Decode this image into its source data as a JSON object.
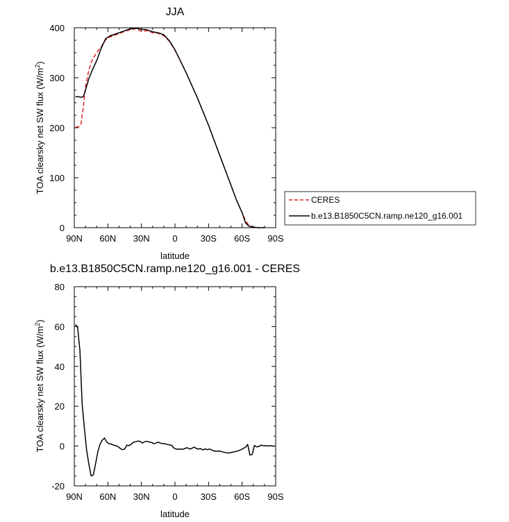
{
  "chart_data": [
    {
      "type": "line",
      "title": "JJA",
      "xlabel": "latitude",
      "ylabel": "TOA clearsky net SW flux (W/m",
      "ylabel_sup": "2",
      "ylabel_end": ")",
      "xlim": [
        90,
        -90
      ],
      "ylim": [
        0,
        400
      ],
      "xticks": [
        90,
        60,
        30,
        0,
        -30,
        -60,
        -90
      ],
      "xtick_labels": [
        "90N",
        "60N",
        "30N",
        "0",
        "30S",
        "60S",
        "90S"
      ],
      "yticks": [
        0,
        100,
        200,
        300,
        400
      ],
      "ytick_labels": [
        "0",
        "100",
        "200",
        "300",
        "400"
      ],
      "grid": false,
      "legend": "outside-right",
      "series": [
        {
          "name": "CERES",
          "color": "#e02020",
          "dash": "dashed",
          "x": [
            89,
            86,
            84,
            82,
            80,
            77,
            74,
            70,
            66,
            62,
            58,
            54,
            50,
            45,
            40,
            35,
            30,
            25,
            20,
            15,
            10,
            5,
            0,
            -10,
            -20,
            -30,
            -40,
            -50,
            -55,
            -60,
            -63,
            -66,
            -70,
            -75,
            -80
          ],
          "y": [
            201,
            202,
            208,
            240,
            282,
            315,
            336,
            350,
            362,
            376,
            382,
            385,
            388,
            393,
            396,
            398,
            393,
            394,
            390,
            389,
            384,
            373,
            355,
            310,
            260,
            205,
            145,
            85,
            55,
            30,
            14,
            5,
            1,
            0,
            0
          ]
        },
        {
          "name": "b.e13.B1850C5CN.ramp.ne120_g16.001",
          "color": "#000000",
          "dash": "solid",
          "x": [
            89,
            86,
            84,
            82,
            80,
            77,
            74,
            70,
            66,
            62,
            58,
            54,
            50,
            45,
            40,
            35,
            30,
            25,
            20,
            15,
            10,
            5,
            0,
            -10,
            -20,
            -30,
            -40,
            -50,
            -55,
            -60,
            -63,
            -66,
            -70,
            -75,
            -80
          ],
          "y": [
            262,
            262,
            261,
            262,
            275,
            298,
            315,
            334,
            359,
            378,
            384,
            387,
            390,
            394,
            398,
            399,
            397,
            396,
            392,
            390,
            386,
            374,
            356,
            310,
            260,
            205,
            145,
            85,
            55,
            30,
            10,
            3,
            1,
            0,
            0
          ]
        }
      ]
    },
    {
      "type": "line",
      "title": "b.e13.B1850C5CN.ramp.ne120_g16.001 - CERES",
      "xlabel": "latitude",
      "ylabel": "TOA clearsky net SW flux (W/m",
      "ylabel_sup": "2",
      "ylabel_end": ")",
      "xlim": [
        90,
        -90
      ],
      "ylim": [
        -20,
        80
      ],
      "xticks": [
        90,
        60,
        30,
        0,
        -30,
        -60,
        -90
      ],
      "xtick_labels": [
        "90N",
        "60N",
        "30N",
        "0",
        "30S",
        "60S",
        "90S"
      ],
      "yticks": [
        -20,
        0,
        20,
        40,
        60,
        80
      ],
      "ytick_labels": [
        "-20",
        "0",
        "20",
        "40",
        "60",
        "80"
      ],
      "grid": false,
      "series": [
        {
          "color": "#000000",
          "dash": "solid",
          "x": [
            89,
            87,
            85,
            83,
            81,
            79,
            77,
            75,
            73,
            71,
            69,
            67,
            65,
            63,
            61,
            59,
            57,
            55,
            53,
            51,
            49,
            47,
            45,
            43,
            41,
            39,
            37,
            35,
            33,
            31,
            29,
            27,
            25,
            23,
            21,
            19,
            17,
            15,
            13,
            11,
            9,
            7,
            5,
            3,
            1,
            -1,
            -3,
            -5,
            -7,
            -9,
            -11,
            -13,
            -15,
            -17,
            -19,
            -21,
            -23,
            -25,
            -27,
            -29,
            -31,
            -33,
            -35,
            -37,
            -39,
            -41,
            -43,
            -45,
            -47,
            -49,
            -51,
            -53,
            -55,
            -57,
            -59,
            -61,
            -63,
            -65,
            -67,
            -69,
            -71,
            -73,
            -75,
            -77,
            -79,
            -81,
            -83,
            -85,
            -87,
            -89
          ],
          "y": [
            61,
            59.5,
            48,
            21,
            9,
            -2,
            -9,
            -15,
            -14.5,
            -9,
            -3,
            1,
            3,
            4,
            2,
            1.2,
            1,
            0.5,
            0.2,
            -0.2,
            -1.2,
            -1.8,
            -1.5,
            0.5,
            0.2,
            1,
            2,
            2.2,
            2.5,
            2.3,
            1.5,
            2.2,
            2.4,
            2,
            1.8,
            1.2,
            1.5,
            2,
            1.5,
            1.2,
            1.2,
            0.8,
            0.6,
            0.4,
            -1,
            -1.5,
            -1.6,
            -1.5,
            -1.6,
            -1.2,
            -0.8,
            -1.5,
            -1.2,
            -0.5,
            -1.2,
            -1.5,
            -1.3,
            -2,
            -1.4,
            -1.8,
            -1.5,
            -2,
            -2.5,
            -2.6,
            -2.5,
            -2.7,
            -3,
            -3.2,
            -3.5,
            -3.4,
            -3.1,
            -2.9,
            -2.7,
            -2.3,
            -1.8,
            -1.2,
            -0.6,
            0.8,
            -4.5,
            -4.2,
            0.3,
            -0.4,
            -0.2,
            0.5,
            0.1,
            0.2,
            0,
            0.2,
            0,
            0
          ]
        }
      ]
    }
  ]
}
